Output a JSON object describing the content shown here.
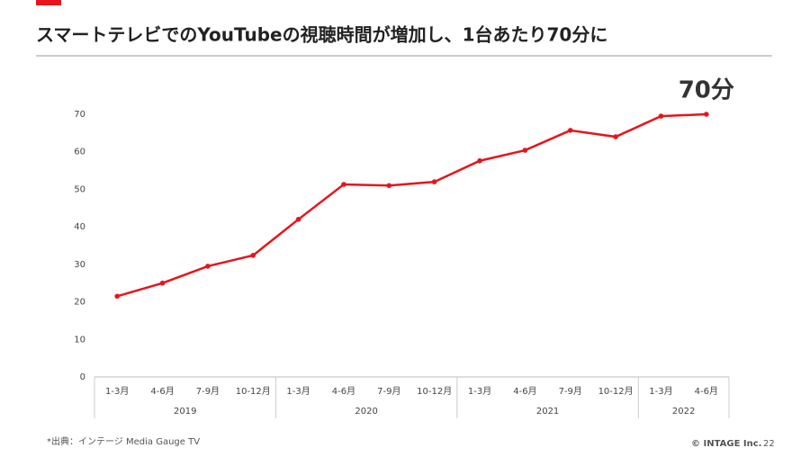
{
  "chart_data": {
    "type": "line",
    "title": "スマートテレビでのYouTubeの視聴時間が増加し、1台あたり70分に",
    "groups": [
      {
        "label": "2019",
        "categories": [
          "1-3月",
          "4-6月",
          "7-9月",
          "10-12月"
        ]
      },
      {
        "label": "2020",
        "categories": [
          "1-3月",
          "4-6月",
          "7-9月",
          "10-12月"
        ]
      },
      {
        "label": "2021",
        "categories": [
          "1-3月",
          "4-6月",
          "7-9月",
          "10-12月"
        ]
      },
      {
        "label": "2022",
        "categories": [
          "1-3月",
          "4-6月"
        ]
      }
    ],
    "series": [
      {
        "color": "#e8141c",
        "values": [
          21.5,
          25,
          29.5,
          32.4,
          42,
          51.3,
          51,
          52,
          57.6,
          60.4,
          65.7,
          64,
          69.5,
          70
        ],
        "value_labels": [
          null,
          null,
          null,
          null,
          null,
          null,
          null,
          null,
          null,
          null,
          null,
          null,
          null,
          "70分"
        ]
      }
    ],
    "ylim": [
      0,
      70
    ],
    "yticks": [
      0,
      10,
      20,
      30,
      40,
      50,
      60,
      70
    ],
    "grid": false
  },
  "footer": {
    "source": "*出典：インテージ Media Gauge TV",
    "copyright": "© INTAGE Inc.",
    "page": "22"
  }
}
